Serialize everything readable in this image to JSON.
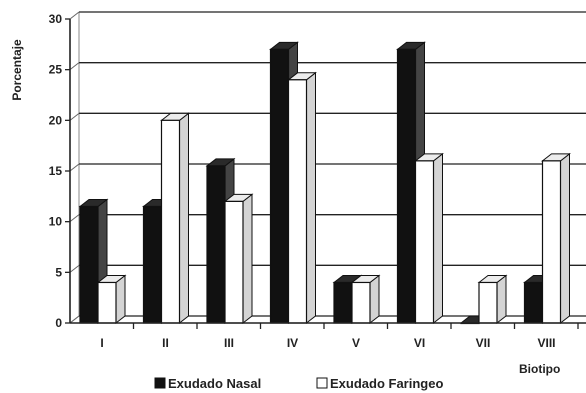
{
  "chart_data": {
    "type": "bar",
    "title": "",
    "xlabel": "Biotipo",
    "ylabel": "Porcentaje",
    "categories": [
      "I",
      "II",
      "III",
      "IV",
      "V",
      "VI",
      "VII",
      "VIII"
    ],
    "yticks": [
      "0",
      "5",
      "10",
      "15",
      "20",
      "25",
      "30"
    ],
    "ylim": [
      0,
      30
    ],
    "grid": true,
    "three_d": true,
    "legend_position": "bottom",
    "series": [
      {
        "name": "Exudado Nasal",
        "color": "#111111",
        "values": [
          11.5,
          11.5,
          15.5,
          27,
          4,
          27,
          0,
          4
        ]
      },
      {
        "name": "Exudado Faringeo",
        "color": "#ffffff",
        "values": [
          4,
          20,
          12,
          24,
          4,
          16,
          4,
          16
        ]
      }
    ]
  }
}
